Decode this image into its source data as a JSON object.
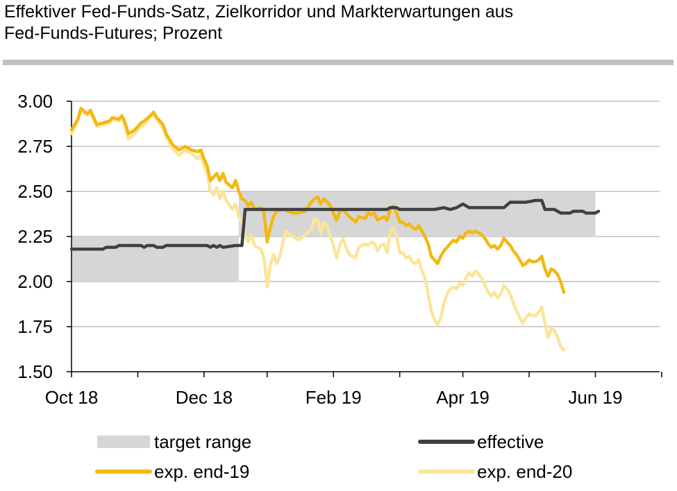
{
  "header": {
    "title_line1": "Effektiver Fed-Funds-Satz, Zielkorridor und Markterwartungen aus",
    "title_line2": "Fed-Funds-Futures; Prozent"
  },
  "colors": {
    "band": "#d6d6d6",
    "effective": "#404040",
    "exp19": "#f3b814",
    "exp20": "#fbe59a",
    "grid": "#cfcfcf",
    "axis": "#000000"
  },
  "legend": {
    "target_range": "target range",
    "effective": "effective",
    "exp19": "exp. end-19",
    "exp20": "exp. end-20"
  },
  "chart_data": {
    "type": "line",
    "title": "Effektiver Fed-Funds-Satz, Zielkorridor und Markterwartungen aus Fed-Funds-Futures; Prozent",
    "xlabel": "",
    "ylabel": "Prozent",
    "ylim": [
      1.5,
      3.0
    ],
    "xlim": [
      0,
      183
    ],
    "yticks": [
      "3.00",
      "2.75",
      "2.50",
      "2.25",
      "2.00",
      "1.75",
      "1.50"
    ],
    "x_tick_labels": [
      {
        "label": "Oct 18",
        "x": 0
      },
      {
        "label": "Dec 18",
        "x": 42
      },
      {
        "label": "Feb 19",
        "x": 83
      },
      {
        "label": "Apr 19",
        "x": 124
      },
      {
        "label": "Jun 19",
        "x": 166
      }
    ],
    "x_minor_ticks": [
      21,
      62,
      104,
      145,
      187
    ],
    "target_range": [
      {
        "from": 0,
        "to": 53,
        "low": 2.0,
        "high": 2.25
      },
      {
        "from": 53,
        "to": 166,
        "low": 2.25,
        "high": 2.5
      }
    ],
    "series": [
      {
        "name": "effective",
        "points": [
          [
            0,
            2.18
          ],
          [
            5,
            2.18
          ],
          [
            10,
            2.18
          ],
          [
            11,
            2.19
          ],
          [
            14,
            2.19
          ],
          [
            15,
            2.2
          ],
          [
            22,
            2.2
          ],
          [
            23,
            2.19
          ],
          [
            24,
            2.2
          ],
          [
            26,
            2.2
          ],
          [
            27,
            2.19
          ],
          [
            29,
            2.19
          ],
          [
            30,
            2.2
          ],
          [
            43,
            2.2
          ],
          [
            44,
            2.19
          ],
          [
            45,
            2.2
          ],
          [
            46,
            2.19
          ],
          [
            47,
            2.2
          ],
          [
            48,
            2.19
          ],
          [
            52,
            2.2
          ],
          [
            54,
            2.2
          ],
          [
            55,
            2.4
          ],
          [
            100,
            2.4
          ],
          [
            101,
            2.41
          ],
          [
            103,
            2.41
          ],
          [
            104,
            2.4
          ],
          [
            115,
            2.4
          ],
          [
            118,
            2.41
          ],
          [
            120,
            2.4
          ],
          [
            122,
            2.41
          ],
          [
            124,
            2.43
          ],
          [
            126,
            2.41
          ],
          [
            137,
            2.41
          ],
          [
            139,
            2.44
          ],
          [
            144,
            2.44
          ],
          [
            147,
            2.45
          ],
          [
            149,
            2.45
          ],
          [
            150,
            2.4
          ],
          [
            153,
            2.4
          ],
          [
            155,
            2.38
          ],
          [
            158,
            2.38
          ],
          [
            159,
            2.39
          ],
          [
            162,
            2.39
          ],
          [
            163,
            2.38
          ],
          [
            166,
            2.38
          ],
          [
            167,
            2.39
          ]
        ]
      },
      {
        "name": "exp. end-19",
        "points": [
          [
            0,
            2.84
          ],
          [
            2,
            2.9
          ],
          [
            3,
            2.96
          ],
          [
            5,
            2.93
          ],
          [
            6,
            2.95
          ],
          [
            8,
            2.87
          ],
          [
            10,
            2.88
          ],
          [
            12,
            2.89
          ],
          [
            13,
            2.91
          ],
          [
            15,
            2.9
          ],
          [
            16,
            2.92
          ],
          [
            17,
            2.88
          ],
          [
            18,
            2.82
          ],
          [
            20,
            2.84
          ],
          [
            22,
            2.88
          ],
          [
            23,
            2.89
          ],
          [
            25,
            2.92
          ],
          [
            26,
            2.94
          ],
          [
            27,
            2.91
          ],
          [
            29,
            2.87
          ],
          [
            30,
            2.82
          ],
          [
            32,
            2.76
          ],
          [
            34,
            2.73
          ],
          [
            36,
            2.75
          ],
          [
            38,
            2.73
          ],
          [
            40,
            2.72
          ],
          [
            41,
            2.73
          ],
          [
            42,
            2.68
          ],
          [
            43,
            2.64
          ],
          [
            44,
            2.56
          ],
          [
            45,
            2.58
          ],
          [
            46,
            2.6
          ],
          [
            47,
            2.56
          ],
          [
            48,
            2.6
          ],
          [
            49,
            2.55
          ],
          [
            51,
            2.52
          ],
          [
            52,
            2.56
          ],
          [
            53,
            2.5
          ],
          [
            54,
            2.46
          ],
          [
            55,
            2.45
          ],
          [
            56,
            2.42
          ],
          [
            57,
            2.44
          ],
          [
            58,
            2.4
          ],
          [
            60,
            2.41
          ],
          [
            61,
            2.38
          ],
          [
            62,
            2.22
          ],
          [
            63,
            2.3
          ],
          [
            64,
            2.36
          ],
          [
            65,
            2.39
          ],
          [
            67,
            2.4
          ],
          [
            70,
            2.38
          ],
          [
            72,
            2.38
          ],
          [
            74,
            2.39
          ],
          [
            76,
            2.44
          ],
          [
            77,
            2.46
          ],
          [
            78,
            2.47
          ],
          [
            79,
            2.43
          ],
          [
            80,
            2.46
          ],
          [
            81,
            2.44
          ],
          [
            82,
            2.42
          ],
          [
            83,
            2.38
          ],
          [
            84,
            2.34
          ],
          [
            85,
            2.39
          ],
          [
            86,
            2.4
          ],
          [
            87,
            2.38
          ],
          [
            88,
            2.36
          ],
          [
            90,
            2.33
          ],
          [
            91,
            2.36
          ],
          [
            93,
            2.35
          ],
          [
            94,
            2.38
          ],
          [
            95,
            2.37
          ],
          [
            96,
            2.38
          ],
          [
            97,
            2.34
          ],
          [
            98,
            2.35
          ],
          [
            99,
            2.36
          ],
          [
            100,
            2.34
          ],
          [
            101,
            2.4
          ],
          [
            102,
            2.42
          ],
          [
            103,
            2.38
          ],
          [
            104,
            2.33
          ],
          [
            105,
            2.33
          ],
          [
            106,
            2.31
          ],
          [
            107,
            2.32
          ],
          [
            108,
            2.3
          ],
          [
            109,
            2.29
          ],
          [
            110,
            2.31
          ],
          [
            111,
            2.28
          ],
          [
            112,
            2.25
          ],
          [
            113,
            2.21
          ],
          [
            114,
            2.14
          ],
          [
            115,
            2.12
          ],
          [
            116,
            2.1
          ],
          [
            117,
            2.14
          ],
          [
            118,
            2.17
          ],
          [
            119,
            2.19
          ],
          [
            120,
            2.21
          ],
          [
            121,
            2.23
          ],
          [
            122,
            2.22
          ],
          [
            123,
            2.25
          ],
          [
            124,
            2.24
          ],
          [
            125,
            2.27
          ],
          [
            126,
            2.28
          ],
          [
            127,
            2.27
          ],
          [
            128,
            2.28
          ],
          [
            129,
            2.27
          ],
          [
            130,
            2.26
          ],
          [
            131,
            2.24
          ],
          [
            132,
            2.21
          ],
          [
            133,
            2.19
          ],
          [
            134,
            2.2
          ],
          [
            135,
            2.18
          ],
          [
            136,
            2.2
          ],
          [
            137,
            2.24
          ],
          [
            138,
            2.22
          ],
          [
            139,
            2.2
          ],
          [
            140,
            2.17
          ],
          [
            141,
            2.15
          ],
          [
            142,
            2.12
          ],
          [
            143,
            2.09
          ],
          [
            144,
            2.1
          ],
          [
            145,
            2.12
          ],
          [
            146,
            2.11
          ],
          [
            147,
            2.11
          ],
          [
            148,
            2.12
          ],
          [
            149,
            2.14
          ],
          [
            150,
            2.07
          ],
          [
            151,
            2.03
          ],
          [
            152,
            2.07
          ],
          [
            153,
            2.06
          ],
          [
            154,
            2.04
          ],
          [
            155,
            2.0
          ],
          [
            156,
            1.94
          ]
        ]
      },
      {
        "name": "exp. end-20",
        "points": [
          [
            0,
            2.82
          ],
          [
            2,
            2.89
          ],
          [
            3,
            2.95
          ],
          [
            5,
            2.92
          ],
          [
            6,
            2.94
          ],
          [
            8,
            2.86
          ],
          [
            10,
            2.87
          ],
          [
            12,
            2.88
          ],
          [
            13,
            2.9
          ],
          [
            15,
            2.89
          ],
          [
            16,
            2.91
          ],
          [
            17,
            2.86
          ],
          [
            18,
            2.79
          ],
          [
            20,
            2.82
          ],
          [
            22,
            2.86
          ],
          [
            23,
            2.87
          ],
          [
            25,
            2.91
          ],
          [
            26,
            2.93
          ],
          [
            27,
            2.9
          ],
          [
            29,
            2.85
          ],
          [
            30,
            2.8
          ],
          [
            32,
            2.74
          ],
          [
            34,
            2.7
          ],
          [
            36,
            2.73
          ],
          [
            38,
            2.71
          ],
          [
            40,
            2.68
          ],
          [
            41,
            2.7
          ],
          [
            42,
            2.64
          ],
          [
            43,
            2.6
          ],
          [
            44,
            2.5
          ],
          [
            45,
            2.48
          ],
          [
            46,
            2.52
          ],
          [
            47,
            2.46
          ],
          [
            48,
            2.5
          ],
          [
            49,
            2.45
          ],
          [
            51,
            2.4
          ],
          [
            52,
            2.43
          ],
          [
            53,
            2.36
          ],
          [
            54,
            2.33
          ],
          [
            55,
            2.26
          ],
          [
            56,
            2.22
          ],
          [
            57,
            2.26
          ],
          [
            58,
            2.2
          ],
          [
            60,
            2.18
          ],
          [
            61,
            2.13
          ],
          [
            62,
            1.97
          ],
          [
            63,
            2.09
          ],
          [
            64,
            2.15
          ],
          [
            65,
            2.1
          ],
          [
            66,
            2.14
          ],
          [
            67,
            2.22
          ],
          [
            68,
            2.28
          ],
          [
            70,
            2.25
          ],
          [
            72,
            2.23
          ],
          [
            74,
            2.26
          ],
          [
            76,
            2.29
          ],
          [
            77,
            2.35
          ],
          [
            78,
            2.34
          ],
          [
            79,
            2.27
          ],
          [
            80,
            2.33
          ],
          [
            81,
            2.31
          ],
          [
            82,
            2.25
          ],
          [
            83,
            2.2
          ],
          [
            84,
            2.13
          ],
          [
            85,
            2.2
          ],
          [
            86,
            2.24
          ],
          [
            87,
            2.19
          ],
          [
            88,
            2.15
          ],
          [
            90,
            2.13
          ],
          [
            91,
            2.19
          ],
          [
            93,
            2.21
          ],
          [
            94,
            2.2
          ],
          [
            95,
            2.22
          ],
          [
            96,
            2.21
          ],
          [
            97,
            2.17
          ],
          [
            98,
            2.2
          ],
          [
            99,
            2.21
          ],
          [
            100,
            2.16
          ],
          [
            101,
            2.28
          ],
          [
            102,
            2.3
          ],
          [
            103,
            2.25
          ],
          [
            104,
            2.16
          ],
          [
            105,
            2.16
          ],
          [
            106,
            2.13
          ],
          [
            107,
            2.14
          ],
          [
            108,
            2.11
          ],
          [
            109,
            2.1
          ],
          [
            110,
            2.12
          ],
          [
            111,
            2.06
          ],
          [
            112,
            2.02
          ],
          [
            113,
            1.93
          ],
          [
            114,
            1.84
          ],
          [
            115,
            1.79
          ],
          [
            116,
            1.76
          ],
          [
            117,
            1.8
          ],
          [
            118,
            1.88
          ],
          [
            119,
            1.93
          ],
          [
            120,
            1.96
          ],
          [
            121,
            1.97
          ],
          [
            122,
            1.96
          ],
          [
            123,
            1.99
          ],
          [
            124,
            1.98
          ],
          [
            125,
            2.02
          ],
          [
            126,
            2.05
          ],
          [
            127,
            2.03
          ],
          [
            128,
            2.06
          ],
          [
            129,
            2.04
          ],
          [
            130,
            2.02
          ],
          [
            131,
            1.98
          ],
          [
            132,
            1.94
          ],
          [
            133,
            1.92
          ],
          [
            134,
            1.94
          ],
          [
            135,
            1.91
          ],
          [
            136,
            1.93
          ],
          [
            137,
            1.98
          ],
          [
            138,
            1.96
          ],
          [
            139,
            1.93
          ],
          [
            140,
            1.88
          ],
          [
            141,
            1.84
          ],
          [
            142,
            1.8
          ],
          [
            143,
            1.77
          ],
          [
            144,
            1.8
          ],
          [
            145,
            1.82
          ],
          [
            146,
            1.81
          ],
          [
            147,
            1.81
          ],
          [
            148,
            1.83
          ],
          [
            149,
            1.86
          ],
          [
            150,
            1.77
          ],
          [
            151,
            1.69
          ],
          [
            152,
            1.74
          ],
          [
            153,
            1.73
          ],
          [
            154,
            1.69
          ],
          [
            155,
            1.64
          ],
          [
            156,
            1.62
          ]
        ]
      }
    ]
  }
}
